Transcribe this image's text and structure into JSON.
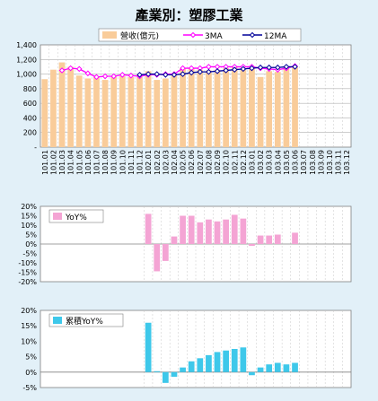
{
  "chart_data": [
    {
      "type": "bar",
      "title": "產業別：塑膠工業",
      "categories": [
        "101.01",
        "101.02",
        "101.03",
        "101.04",
        "101.05",
        "101.06",
        "101.07",
        "101.08",
        "101.09",
        "101.10",
        "101.11",
        "101.12",
        "102.01",
        "102.02",
        "102.03",
        "102.04",
        "102.05",
        "102.06",
        "102.07",
        "102.08",
        "102.09",
        "102.10",
        "102.11",
        "102.12",
        "103.01",
        "103.02",
        "103.03",
        "103.04",
        "103.05",
        "103.06",
        "103.07",
        "103.08",
        "103.09",
        "103.10",
        "103.11",
        "103.12"
      ],
      "yticks": [
        "1,400",
        "1,200",
        "1,000",
        "800",
        "600",
        "400",
        "200",
        "-"
      ],
      "ylim": [
        0,
        1400
      ],
      "grid": true,
      "legend_position": "top",
      "series": [
        {
          "name": "營收(億元)",
          "kind": "bar",
          "color": "#f9cc9a",
          "values": [
            930,
            1060,
            1160,
            1100,
            980,
            940,
            960,
            920,
            960,
            970,
            960,
            960,
            1040,
            920,
            940,
            980,
            1080,
            1090,
            1060,
            1050,
            1060,
            1080,
            1100,
            1080,
            1090,
            960,
            1040,
            1030,
            1090,
            1100,
            null,
            null,
            null,
            null,
            null,
            null
          ]
        },
        {
          "name": "3MA",
          "kind": "line",
          "color": "#ff00ff",
          "values": [
            null,
            null,
            1050,
            1080,
            1070,
            1010,
            960,
            970,
            970,
            990,
            980,
            970,
            990,
            990,
            1000,
            1000,
            1080,
            1080,
            1080,
            1100,
            1100,
            1100,
            1100,
            1100,
            1100,
            1080,
            1070,
            1060,
            1080,
            1110,
            null,
            null,
            null,
            null,
            null,
            null
          ]
        },
        {
          "name": "12MA",
          "kind": "line",
          "color": "#000099",
          "values": [
            null,
            null,
            null,
            null,
            null,
            null,
            null,
            null,
            null,
            null,
            null,
            990,
            1000,
            1000,
            990,
            990,
            1000,
            1020,
            1030,
            1030,
            1040,
            1050,
            1060,
            1070,
            1080,
            1090,
            1090,
            1090,
            1100,
            1100,
            null,
            null,
            null,
            null,
            null,
            null
          ]
        }
      ]
    },
    {
      "type": "bar",
      "title": "",
      "yticks": [
        "20%",
        "15%",
        "10%",
        "5%",
        "0%",
        "-5%",
        "-10%",
        "-15%",
        "-20%"
      ],
      "ylim": [
        -20,
        20
      ],
      "series": [
        {
          "name": "YoY%",
          "color": "#f4a4d4",
          "values": [
            null,
            null,
            null,
            null,
            null,
            null,
            null,
            null,
            null,
            null,
            null,
            null,
            16,
            -14.5,
            -9,
            4,
            15,
            15,
            11.5,
            13,
            12,
            13,
            15.5,
            13.5,
            -1,
            4.5,
            4.5,
            5,
            null,
            6,
            null,
            null,
            null,
            null,
            null,
            null
          ]
        }
      ]
    },
    {
      "type": "bar",
      "title": "",
      "yticks": [
        "20%",
        "15%",
        "10%",
        "5%",
        "0%",
        "-5%"
      ],
      "ylim": [
        -5,
        20
      ],
      "series": [
        {
          "name": "累積YoY%",
          "color": "#3ec8ea",
          "values": [
            null,
            null,
            null,
            null,
            null,
            null,
            null,
            null,
            null,
            null,
            null,
            null,
            16,
            0.3,
            -3.5,
            -1.5,
            1.5,
            3.5,
            4.5,
            5.5,
            6.5,
            7,
            7.5,
            8,
            -1,
            1.5,
            2.5,
            3,
            2.5,
            3,
            null,
            null,
            null,
            null,
            null,
            null
          ]
        }
      ]
    }
  ]
}
